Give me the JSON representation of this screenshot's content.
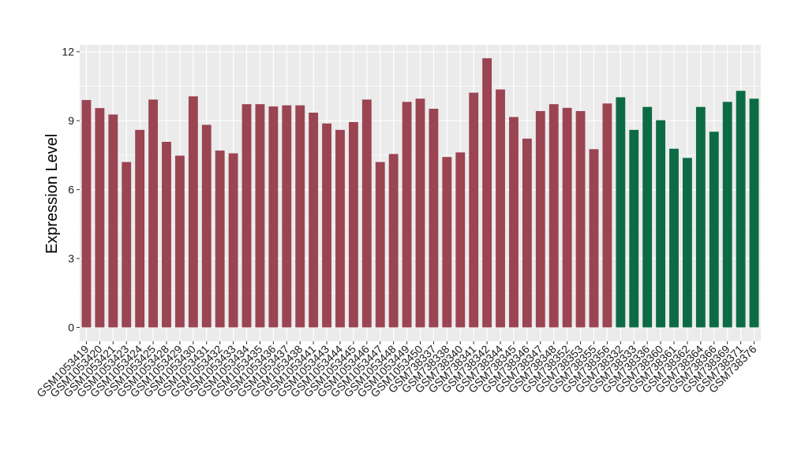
{
  "chart_data": {
    "type": "bar",
    "title": "",
    "xlabel": "",
    "ylabel": "Expression Level",
    "ylim": [
      -0.6,
      12.3
    ],
    "yticks": [
      0,
      3,
      6,
      9,
      12
    ],
    "grid": true,
    "colors": {
      "group1": "#9b4452",
      "group2": "#0c6b45",
      "panel_bg": "#ebebeb",
      "grid": "#ffffff"
    },
    "categories": [
      "GSM1053419",
      "GSM1053420",
      "GSM1053421",
      "GSM1053423",
      "GSM1053424",
      "GSM1053425",
      "GSM1053428",
      "GSM1053429",
      "GSM1053430",
      "GSM1053431",
      "GSM1053432",
      "GSM1053433",
      "GSM1053434",
      "GSM1053435",
      "GSM1053436",
      "GSM1053437",
      "GSM1053438",
      "GSM1053441",
      "GSM1053443",
      "GSM1053444",
      "GSM1053445",
      "GSM1053446",
      "GSM1053447",
      "GSM1053448",
      "GSM1053449",
      "GSM1053450",
      "GSM738337",
      "GSM738338",
      "GSM738340",
      "GSM738341",
      "GSM738342",
      "GSM738344",
      "GSM738345",
      "GSM738346",
      "GSM738347",
      "GSM738348",
      "GSM738352",
      "GSM738353",
      "GSM738355",
      "GSM738356",
      "GSM738332",
      "GSM738333",
      "GSM738336",
      "GSM738360",
      "GSM738361",
      "GSM738362",
      "GSM738364",
      "GSM738366",
      "GSM738369",
      "GSM738371",
      "GSM738376"
    ],
    "values": [
      9.9,
      9.55,
      9.27,
      7.2,
      8.6,
      9.92,
      8.08,
      7.48,
      10.06,
      8.82,
      7.7,
      7.58,
      9.72,
      9.72,
      9.62,
      9.67,
      9.67,
      9.35,
      8.88,
      8.6,
      8.94,
      9.92,
      7.2,
      7.55,
      9.82,
      9.96,
      9.52,
      7.42,
      7.62,
      10.22,
      11.72,
      10.36,
      9.16,
      8.22,
      9.42,
      9.72,
      9.56,
      9.42,
      7.76,
      9.75,
      10.02,
      8.6,
      9.6,
      9.02,
      7.78,
      7.38,
      9.6,
      8.52,
      9.82,
      10.3,
      9.96
    ],
    "groups": [
      1,
      1,
      1,
      1,
      1,
      1,
      1,
      1,
      1,
      1,
      1,
      1,
      1,
      1,
      1,
      1,
      1,
      1,
      1,
      1,
      1,
      1,
      1,
      1,
      1,
      1,
      1,
      1,
      1,
      1,
      1,
      1,
      1,
      1,
      1,
      1,
      1,
      1,
      1,
      1,
      2,
      2,
      2,
      2,
      2,
      2,
      2,
      2,
      2,
      2,
      2
    ]
  }
}
